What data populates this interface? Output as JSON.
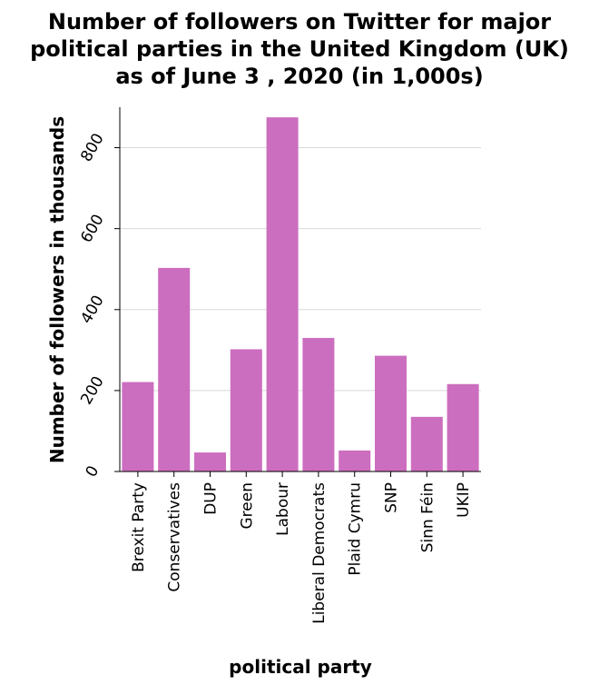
{
  "chart_data": {
    "type": "bar",
    "title_lines": [
      "Number of followers on Twitter for major",
      "political parties in the United Kingdom (UK)",
      "as of June 3 , 2020 (in 1,000s)"
    ],
    "xlabel": "political party",
    "ylabel": "Number of followers in thousands",
    "categories": [
      "Brexit Party",
      "Conservatives",
      "DUP",
      "Green",
      "Labour",
      "Liberal Democrats",
      "Plaid Cymru",
      "SNP",
      "Sinn Féin",
      "UKIP"
    ],
    "values": [
      221,
      503,
      47,
      302,
      875,
      330,
      52,
      286,
      135,
      216
    ],
    "ylim": [
      0,
      900
    ],
    "yticks": [
      0,
      200,
      400,
      600,
      800
    ],
    "grid": true,
    "legend": "none",
    "bar_color": "#cc6ebf",
    "grid_color": "#d9d9d9"
  }
}
